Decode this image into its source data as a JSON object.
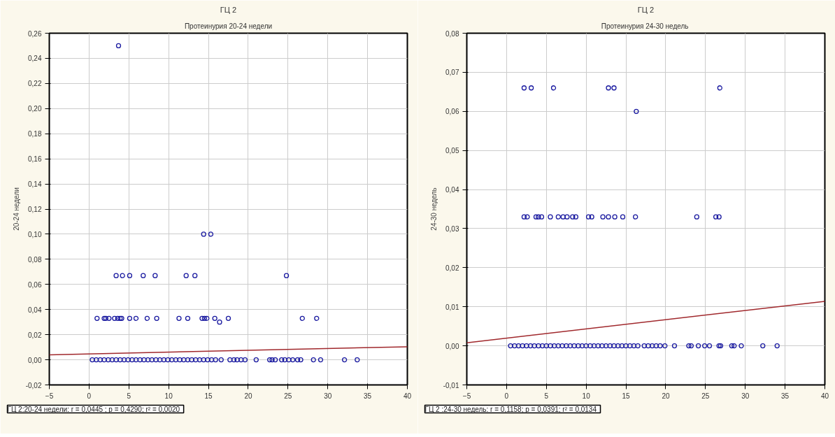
{
  "chart_data": [
    {
      "type": "scatter",
      "title": "ГЦ 2",
      "subtitle": "Протеинурия 20-24 недели",
      "ylabel": "20-24 недели",
      "grid": true,
      "xlim": [
        -5,
        40
      ],
      "ylim": [
        -0.02,
        0.26
      ],
      "xticks": [
        -5,
        0,
        5,
        10,
        15,
        20,
        25,
        30,
        35,
        40
      ],
      "yticks": [
        {
          "value": -0.02,
          "label": "-0,02"
        },
        {
          "value": 0,
          "label": "0,00"
        },
        {
          "value": 0.02,
          "label": "0,02"
        },
        {
          "value": 0.04,
          "label": "0,04"
        },
        {
          "value": 0.06,
          "label": "0,06"
        },
        {
          "value": 0.08,
          "label": "0,08"
        },
        {
          "value": 0.1,
          "label": "0,10"
        },
        {
          "value": 0.12,
          "label": "0,12"
        },
        {
          "value": 0.14,
          "label": "0,14"
        },
        {
          "value": 0.16,
          "label": "0,16"
        },
        {
          "value": 0.18,
          "label": "0,18"
        },
        {
          "value": 0.2,
          "label": "0,20"
        },
        {
          "value": 0.22,
          "label": "0,22"
        },
        {
          "value": 0.24,
          "label": "0,24"
        },
        {
          "value": 0.26,
          "label": "0,26"
        }
      ],
      "annotations": [
        "ГЦ 2:20-24 недели:   r = 0,0445 ; p = 0,4290; r² = 0,0020"
      ],
      "series": [
        {
          "color": "#1a1aa0",
          "marker": "circle",
          "x": [
            3.7,
            14.4,
            15.3,
            3.4,
            4.2,
            5.1,
            6.8,
            8.3,
            12.2,
            13.3,
            24.8,
            1.0,
            1.9,
            2.1,
            2.5,
            3.2,
            3.6,
            3.9,
            4.1,
            5.1,
            5.9,
            7.3,
            8.5,
            11.3,
            12.4,
            14.2,
            14.5,
            14.8,
            15.8,
            16.4,
            17.5,
            26.8,
            28.6,
            0.4,
            0.9,
            1.4,
            1.9,
            2.4,
            2.9,
            3.4,
            3.9,
            4.4,
            4.9,
            5.4,
            5.9,
            6.4,
            6.9,
            7.4,
            7.9,
            8.4,
            8.9,
            9.4,
            9.9,
            10.4,
            10.9,
            11.4,
            11.9,
            12.4,
            12.9,
            13.4,
            13.9,
            14.4,
            14.9,
            15.4,
            15.9,
            16.6,
            17.7,
            18.2,
            18.6,
            19.1,
            19.6,
            21.0,
            22.7,
            23.0,
            23.4,
            24.2,
            24.6,
            25.1,
            25.6,
            26.2,
            26.6,
            28.2,
            29.1,
            32.1,
            33.7
          ],
          "values": [
            0.25,
            0.1,
            0.1,
            0.067,
            0.067,
            0.067,
            0.067,
            0.067,
            0.067,
            0.067,
            0.067,
            0.033,
            0.033,
            0.033,
            0.033,
            0.033,
            0.033,
            0.033,
            0.033,
            0.033,
            0.033,
            0.033,
            0.033,
            0.033,
            0.033,
            0.033,
            0.033,
            0.033,
            0.033,
            0.03,
            0.033,
            0.033,
            0.033,
            0,
            0,
            0,
            0,
            0,
            0,
            0,
            0,
            0,
            0,
            0,
            0,
            0,
            0,
            0,
            0,
            0,
            0,
            0,
            0,
            0,
            0,
            0,
            0,
            0,
            0,
            0,
            0,
            0,
            0,
            0,
            0,
            0,
            0,
            0,
            0,
            0,
            0,
            0,
            0,
            0,
            0,
            0,
            0,
            0,
            0,
            0,
            0,
            0,
            0,
            0,
            0
          ]
        },
        {
          "type": "line",
          "color": "#a0282c",
          "x": [
            -5,
            40
          ],
          "values": [
            0.004,
            0.0104
          ]
        }
      ]
    },
    {
      "type": "scatter",
      "title": "ГЦ 2",
      "subtitle": "Протеинурия  24-30 недель",
      "ylabel": "24-30 недель",
      "grid": true,
      "xlim": [
        -5,
        40
      ],
      "ylim": [
        -0.01,
        0.08
      ],
      "xticks": [
        -5,
        0,
        5,
        10,
        15,
        20,
        25,
        30,
        35,
        40
      ],
      "yticks": [
        {
          "value": -0.01,
          "label": "-0,01"
        },
        {
          "value": 0,
          "label": "0,00"
        },
        {
          "value": 0.01,
          "label": "0,01"
        },
        {
          "value": 0.02,
          "label": "0,02"
        },
        {
          "value": 0.03,
          "label": "0,03"
        },
        {
          "value": 0.04,
          "label": "0,04"
        },
        {
          "value": 0.05,
          "label": "0,05"
        },
        {
          "value": 0.06,
          "label": "0,06"
        },
        {
          "value": 0.07,
          "label": "0,07"
        },
        {
          "value": 0.08,
          "label": "0,08"
        }
      ],
      "annotations": [
        "ГЦ 2 :24-30 недель:   r = 0,1158; p = 0,0391; r² = 0,0134"
      ],
      "series": [
        {
          "color": "#1a1aa0",
          "marker": "circle",
          "x": [
            2.2,
            3.1,
            5.9,
            12.8,
            13.5,
            26.8,
            16.3,
            2.2,
            2.6,
            3.7,
            4.0,
            4.4,
            5.5,
            6.5,
            7.1,
            7.6,
            8.3,
            8.7,
            10.3,
            10.7,
            12.1,
            12.8,
            13.6,
            14.6,
            16.2,
            23.9,
            26.3,
            26.7,
            0.5,
            1.0,
            1.5,
            2.0,
            2.5,
            3.0,
            3.5,
            4.0,
            4.5,
            5.0,
            5.5,
            6.0,
            6.5,
            7.0,
            7.5,
            8.0,
            8.5,
            9.0,
            9.5,
            10.0,
            10.5,
            11.0,
            11.5,
            12.0,
            12.5,
            13.0,
            13.5,
            14.0,
            14.5,
            15.0,
            15.5,
            16.0,
            16.5,
            17.3,
            17.8,
            18.3,
            18.8,
            19.3,
            19.9,
            21.1,
            22.9,
            23.2,
            24.1,
            24.9,
            25.5,
            26.7,
            26.9,
            28.3,
            28.6,
            29.5,
            32.2,
            34.0
          ],
          "values": [
            0.066,
            0.066,
            0.066,
            0.066,
            0.066,
            0.066,
            0.06,
            0.033,
            0.033,
            0.033,
            0.033,
            0.033,
            0.033,
            0.033,
            0.033,
            0.033,
            0.033,
            0.033,
            0.033,
            0.033,
            0.033,
            0.033,
            0.033,
            0.033,
            0.033,
            0.033,
            0.033,
            0.033,
            0,
            0,
            0,
            0,
            0,
            0,
            0,
            0,
            0,
            0,
            0,
            0,
            0,
            0,
            0,
            0,
            0,
            0,
            0,
            0,
            0,
            0,
            0,
            0,
            0,
            0,
            0,
            0,
            0,
            0,
            0,
            0,
            0,
            0,
            0,
            0,
            0,
            0,
            0,
            0,
            0,
            0,
            0,
            0,
            0,
            0,
            0,
            0,
            0,
            0,
            0,
            0
          ]
        },
        {
          "type": "line",
          "color": "#a0282c",
          "x": [
            -5,
            40
          ],
          "values": [
            0.0008,
            0.0114
          ]
        }
      ]
    }
  ]
}
